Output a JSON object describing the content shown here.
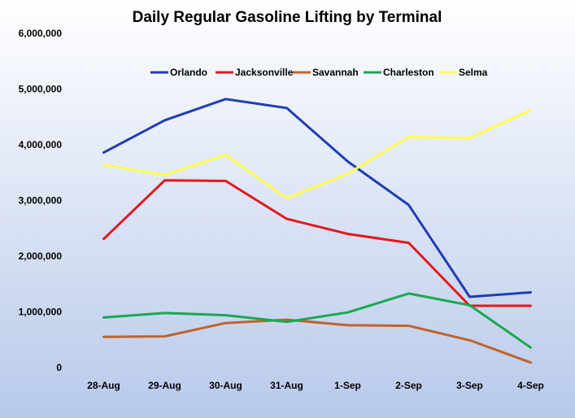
{
  "chart_data": {
    "type": "line",
    "title": "Daily Regular Gasoline Lifting by Terminal",
    "xlabel": "",
    "ylabel": "",
    "categories": [
      "28-Aug",
      "29-Aug",
      "30-Aug",
      "31-Aug",
      "1-Sep",
      "2-Sep",
      "3-Sep",
      "4-Sep"
    ],
    "ylim": [
      0,
      6000000
    ],
    "yticks": [
      0,
      1000000,
      2000000,
      3000000,
      4000000,
      5000000,
      6000000
    ],
    "ytick_labels": [
      "0",
      "1,000,000",
      "2,000,000",
      "3,000,000",
      "4,000,000",
      "5,000,000",
      "6,000,000"
    ],
    "grid": false,
    "legend_position": "top",
    "series": [
      {
        "name": "Orlando",
        "color": "#1f3fb0",
        "values": [
          3860000,
          4440000,
          4820000,
          4660000,
          3700000,
          2920000,
          1270000,
          1350000
        ]
      },
      {
        "name": "Jacksonville",
        "color": "#e3181e",
        "values": [
          2310000,
          3360000,
          3350000,
          2670000,
          2400000,
          2240000,
          1110000,
          1110000
        ]
      },
      {
        "name": "Savannah",
        "color": "#c0632c",
        "values": [
          550000,
          560000,
          800000,
          860000,
          760000,
          750000,
          490000,
          90000
        ]
      },
      {
        "name": "Charleston",
        "color": "#1aa84f",
        "values": [
          900000,
          980000,
          940000,
          820000,
          990000,
          1330000,
          1120000,
          360000
        ]
      },
      {
        "name": "Selma",
        "color": "#ffff4d",
        "values": [
          3640000,
          3460000,
          3820000,
          3040000,
          3480000,
          4140000,
          4120000,
          4620000
        ]
      }
    ]
  }
}
